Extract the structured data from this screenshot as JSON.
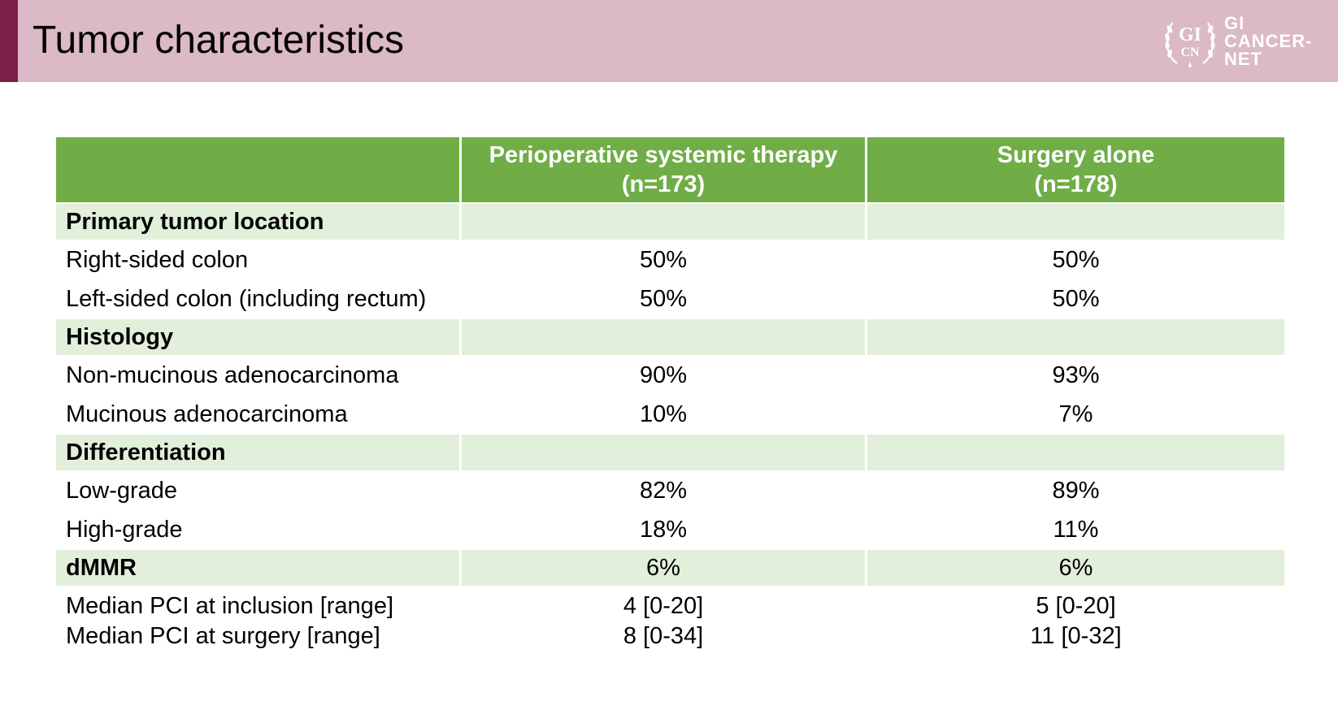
{
  "slide": {
    "title": "Tumor characteristics"
  },
  "logo": {
    "mark_top": "GI",
    "mark_bottom": "CN",
    "words": [
      "GI",
      "CANCER-",
      "NET"
    ],
    "colors": {
      "accent": "#7a1f48",
      "header_bg": "#dbb9c7"
    }
  },
  "table": {
    "headers": [
      {
        "line1": "",
        "line2": ""
      },
      {
        "line1": "Perioperative systemic therapy",
        "line2": "(n=173)"
      },
      {
        "line1": "Surgery alone",
        "line2": "(n=178)"
      }
    ],
    "rows": [
      {
        "kind": "section",
        "label": "Primary tumor location",
        "v1": "",
        "v2": ""
      },
      {
        "kind": "plain",
        "label": "Right-sided colon",
        "v1": "50%",
        "v2": "50%"
      },
      {
        "kind": "plain",
        "label": "Left-sided colon (including rectum)",
        "v1": "50%",
        "v2": "50%"
      },
      {
        "kind": "section",
        "label": "Histology",
        "v1": "",
        "v2": ""
      },
      {
        "kind": "plain",
        "label": "Non-mucinous adenocarcinoma",
        "v1": "90%",
        "v2": "93%"
      },
      {
        "kind": "plain",
        "label": "Mucinous adenocarcinoma",
        "v1": "10%",
        "v2": "7%"
      },
      {
        "kind": "section",
        "label": "Differentiation",
        "v1": "",
        "v2": ""
      },
      {
        "kind": "plain",
        "label": "Low-grade",
        "v1": "82%",
        "v2": "89%"
      },
      {
        "kind": "plain",
        "label": "High-grade",
        "v1": "18%",
        "v2": "11%"
      },
      {
        "kind": "section",
        "label": "dMMR",
        "v1": "6%",
        "v2": "6%"
      }
    ],
    "pci": {
      "label_inclusion": "Median PCI at inclusion [range]",
      "label_surgery": "Median PCI at surgery [range]",
      "peri_inclusion": "4 [0-20]",
      "peri_surgery": "8 [0-34]",
      "surg_inclusion": "5 [0-20]",
      "surg_surgery": "11 [0-32]"
    },
    "colors": {
      "header": "#70ad47",
      "section": "#e2efda"
    }
  }
}
